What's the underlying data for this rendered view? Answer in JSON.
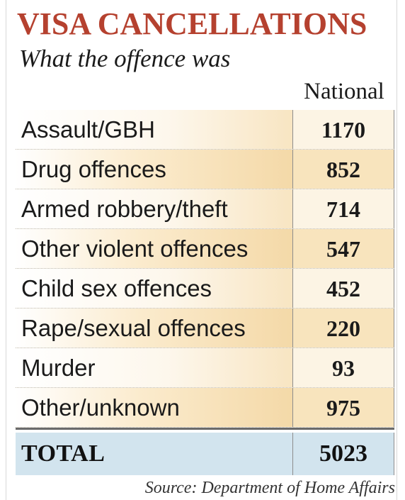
{
  "chart_data": {
    "type": "table",
    "title": "VISA CANCELLATIONS",
    "subtitle": "What the offence was",
    "column_header": "National",
    "rows": [
      {
        "label": "Assault/GBH",
        "value": 1170
      },
      {
        "label": "Drug offences",
        "value": 852
      },
      {
        "label": "Armed robbery/theft",
        "value": 714
      },
      {
        "label": "Other violent offences",
        "value": 547
      },
      {
        "label": "Child sex offences",
        "value": 452
      },
      {
        "label": "Rape/sexual offences",
        "value": 220
      },
      {
        "label": "Murder",
        "value": 93
      },
      {
        "label": "Other/unknown",
        "value": 975
      }
    ],
    "total": {
      "label": "TOTAL",
      "value": 5023
    },
    "source": "Source: Department of Home Affairs"
  },
  "colors": {
    "title": "#b5412f",
    "row_tint_light": "#fcf4e4",
    "row_tint_dark": "#f8e4bd",
    "total_background": "#d2e4ee",
    "rule": "#6a6a6a"
  }
}
